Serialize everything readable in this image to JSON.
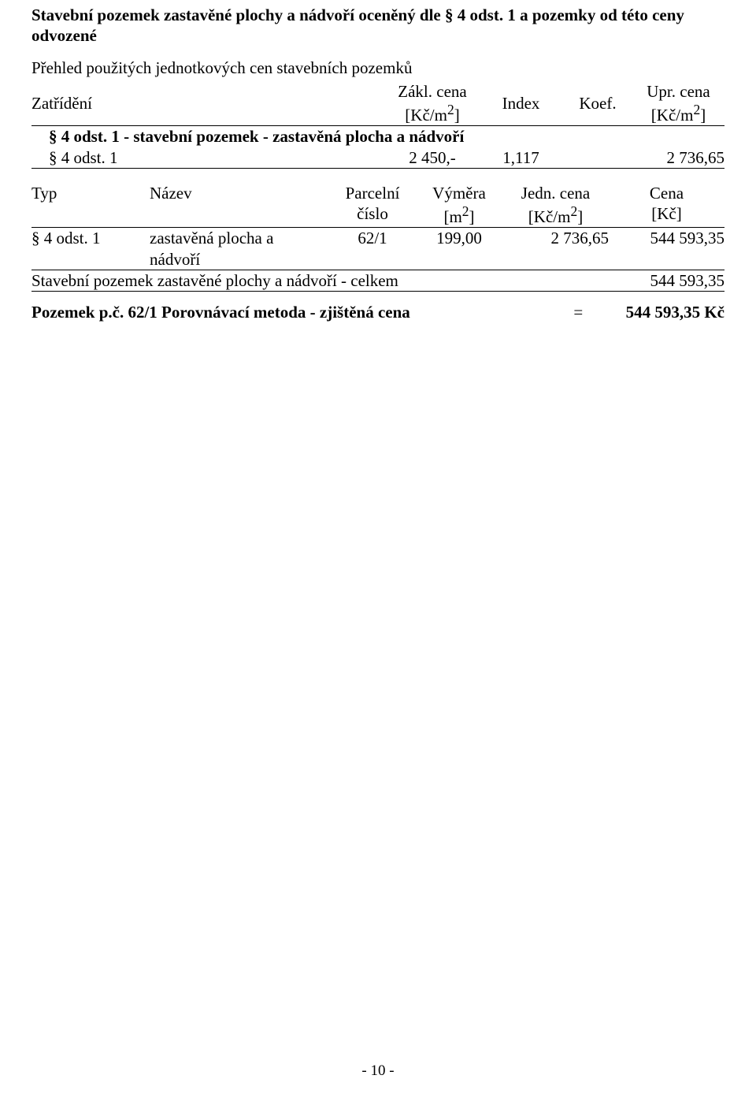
{
  "heading": "Stavební pozemek zastavěné plochy a nádvoří oceněný dle § 4 odst. 1 a pozemky od této ceny odvozené",
  "subheading": "Přehled použitých jednotkových cen stavebních pozemků",
  "t1": {
    "headers": {
      "zatrideni": "Zatřídění",
      "zakl_line1": "Zákl. cena",
      "zakl_line2": "[Kč/m",
      "sup2": "2",
      "close": "]",
      "index": "Index",
      "koef": "Koef.",
      "upr_line1": "Upr. cena",
      "upr_line2": "[Kč/m"
    },
    "section_title": "§ 4 odst. 1 - stavební pozemek - zastavěná plocha a nádvoří",
    "row": {
      "label": "§ 4 odst. 1",
      "zakl": "2 450,-",
      "index": "1,117",
      "koef": "",
      "upr": "2 736,65"
    }
  },
  "t2": {
    "headers": {
      "typ": "Typ",
      "nazev": "Název",
      "parc_line1": "Parcelní",
      "parc_line2": "číslo",
      "vym_line1": "Výměra",
      "vym_line2": "[m",
      "sup2": "2",
      "close": "]",
      "jedn_line1": "Jedn. cena",
      "jedn_line2": "[Kč/m",
      "cena_line1": "Cena",
      "cena_line2": "[Kč]"
    },
    "row": {
      "typ": "§ 4 odst. 1",
      "nazev_line1": "zastavěná plocha a",
      "nazev_line2": "nádvoří",
      "parc": "62/1",
      "vym": "199,00",
      "jedn": "2 736,65",
      "cena": "544 593,35"
    },
    "sum": {
      "label": "Stavební pozemek zastavěné plochy a nádvoří - celkem",
      "value": "544 593,35"
    }
  },
  "result": {
    "label": "Pozemek p.č. 62/1 Porovnávací metoda - zjištěná cena",
    "eq": "=",
    "value": "544 593,35 Kč"
  },
  "page_number": "- 10 -"
}
